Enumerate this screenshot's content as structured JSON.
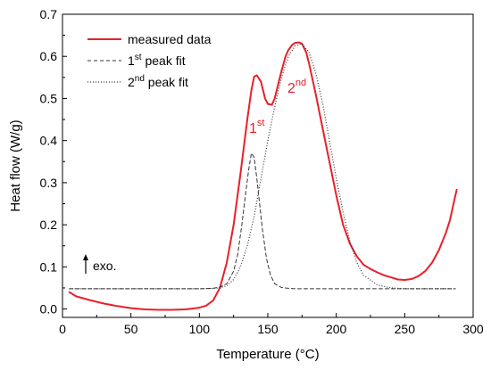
{
  "chart_data": {
    "type": "line",
    "xlabel": "Temperature (°C)",
    "ylabel": "Heat flow (W/g)",
    "xlim": [
      0,
      300
    ],
    "ylim": [
      -0.02,
      0.7
    ],
    "xticks": [
      0,
      50,
      100,
      150,
      200,
      250,
      300
    ],
    "yticks": [
      0.0,
      0.1,
      0.2,
      0.3,
      0.4,
      0.5,
      0.6,
      0.7
    ],
    "grid": false,
    "legend_position": "top-left",
    "series": [
      {
        "name": "measured data",
        "style": "solid",
        "color": "#e8202a",
        "x": [
          5,
          10,
          20,
          30,
          40,
          50,
          60,
          70,
          80,
          90,
          100,
          105,
          110,
          115,
          120,
          125,
          130,
          135,
          138,
          140,
          142,
          145,
          148,
          150,
          153,
          155,
          158,
          160,
          163,
          165,
          168,
          170,
          173,
          175,
          178,
          180,
          185,
          190,
          195,
          200,
          205,
          210,
          215,
          220,
          225,
          230,
          235,
          240,
          245,
          250,
          255,
          260,
          265,
          270,
          275,
          280,
          283,
          285,
          287,
          288
        ],
        "y": [
          0.04,
          0.03,
          0.021,
          0.013,
          0.007,
          0.002,
          -0.001,
          -0.002,
          -0.002,
          -0.001,
          0.003,
          0.008,
          0.02,
          0.05,
          0.11,
          0.2,
          0.32,
          0.45,
          0.52,
          0.552,
          0.555,
          0.54,
          0.5,
          0.487,
          0.485,
          0.5,
          0.54,
          0.565,
          0.6,
          0.615,
          0.628,
          0.632,
          0.633,
          0.63,
          0.61,
          0.585,
          0.51,
          0.43,
          0.35,
          0.27,
          0.2,
          0.155,
          0.125,
          0.105,
          0.095,
          0.087,
          0.08,
          0.075,
          0.07,
          0.069,
          0.071,
          0.078,
          0.09,
          0.11,
          0.14,
          0.18,
          0.21,
          0.24,
          0.27,
          0.283
        ]
      },
      {
        "name": "1st peak fit",
        "style": "dashed",
        "color": "#333333",
        "x": [
          5,
          100,
          110,
          115,
          120,
          125,
          128,
          131,
          134,
          136,
          138,
          140,
          142,
          144,
          146,
          149,
          152,
          155,
          160,
          165,
          170,
          180,
          287
        ],
        "y": [
          0.048,
          0.048,
          0.049,
          0.052,
          0.06,
          0.09,
          0.13,
          0.2,
          0.28,
          0.33,
          0.37,
          0.36,
          0.31,
          0.25,
          0.19,
          0.12,
          0.08,
          0.06,
          0.051,
          0.049,
          0.048,
          0.048,
          0.048
        ]
      },
      {
        "name": "2nd peak fit",
        "style": "dotted",
        "color": "#333333",
        "x": [
          5,
          100,
          110,
          115,
          120,
          125,
          130,
          135,
          140,
          145,
          150,
          155,
          160,
          165,
          170,
          175,
          180,
          185,
          190,
          195,
          200,
          205,
          210,
          215,
          220,
          230,
          240,
          250,
          260,
          287
        ],
        "y": [
          0.048,
          0.048,
          0.049,
          0.05,
          0.055,
          0.07,
          0.1,
          0.15,
          0.22,
          0.31,
          0.4,
          0.48,
          0.55,
          0.6,
          0.625,
          0.63,
          0.61,
          0.56,
          0.49,
          0.4,
          0.31,
          0.23,
          0.16,
          0.11,
          0.08,
          0.057,
          0.05,
          0.048,
          0.048,
          0.048
        ]
      }
    ],
    "legend": [
      {
        "base": "measured data",
        "sup": "",
        "rest": ""
      },
      {
        "base": "1",
        "sup": "st",
        "rest": " peak fit"
      },
      {
        "base": "2",
        "sup": "nd",
        "rest": " peak fit"
      }
    ],
    "annotations": [
      {
        "text": "1",
        "sup": "st",
        "color": "#e8202a"
      },
      {
        "text": "2",
        "sup": "nd",
        "color": "#e8202a"
      },
      {
        "text": "exo."
      }
    ]
  }
}
